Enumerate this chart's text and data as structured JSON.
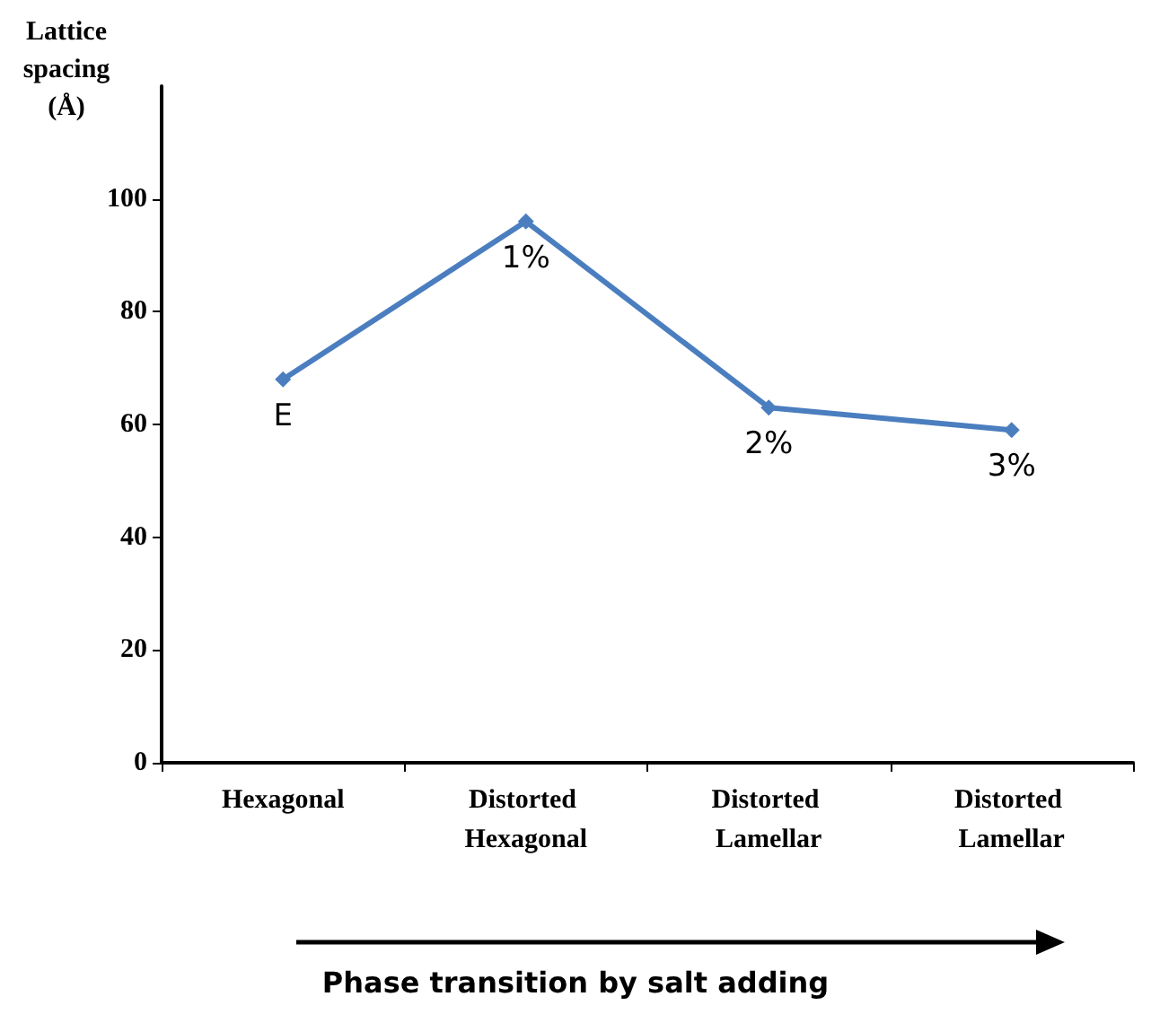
{
  "chart_data": {
    "type": "line",
    "ylabel": "Lattice spacing (Å)",
    "xlabel": "Phase transition by salt adding",
    "categories": [
      "Hexagonal",
      "Distorted Hexagonal",
      "Distorted Lamellar",
      "Distorted Lamellar"
    ],
    "series": [
      {
        "color": "#4a7ebf",
        "values": [
          68,
          96,
          63,
          59
        ]
      }
    ],
    "ylim": [
      0,
      120
    ],
    "yticks": [
      0,
      20,
      40,
      60,
      80,
      100
    ],
    "grid": false,
    "marker": "diamond",
    "line_style": "solid",
    "annotations": [
      "E",
      "1%",
      "2%",
      "3%"
    ]
  }
}
